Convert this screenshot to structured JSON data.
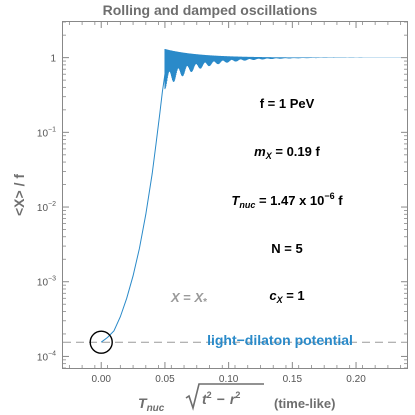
{
  "chart_data": {
    "type": "line",
    "title": "Rolling and damped oscillations",
    "xlabel": {
      "main": "T",
      "sub": "nuc",
      "root": "t",
      "sup": "2",
      "minus": "−",
      "root2": "r",
      "sup2": "2",
      "suffix": "(time-like)"
    },
    "ylabel": "<X> / f",
    "x_scale": "linear",
    "y_scale": "log",
    "xlim": [
      -0.03,
      0.24
    ],
    "ylim": [
      7e-05,
      3
    ],
    "x_ticks": [
      {
        "value": 0.0,
        "label": "0.00"
      },
      {
        "value": 0.05,
        "label": "0.05"
      },
      {
        "value": 0.1,
        "label": "0.10"
      },
      {
        "value": 0.15,
        "label": "0.15"
      },
      {
        "value": 0.2,
        "label": "0.20"
      }
    ],
    "y_ticks": [
      {
        "value": 1,
        "base": "1",
        "exp": ""
      },
      {
        "value": 0.1,
        "base": "10",
        "exp": "−1"
      },
      {
        "value": 0.01,
        "base": "10",
        "exp": "−2"
      },
      {
        "value": 0.001,
        "base": "10",
        "exp": "−3"
      },
      {
        "value": 0.0001,
        "base": "10",
        "exp": "−4"
      }
    ],
    "series": [
      {
        "color": "#2a8ac9",
        "rise": {
          "x": [
            0.0,
            0.005,
            0.01,
            0.015,
            0.02,
            0.025,
            0.03,
            0.035,
            0.04,
            0.043,
            0.046,
            0.048,
            0.05
          ],
          "y": [
            0.000155,
            0.00018,
            0.00022,
            0.00034,
            0.0006,
            0.0012,
            0.0028,
            0.008,
            0.028,
            0.07,
            0.18,
            0.35,
            0.6
          ]
        },
        "oscillation": {
          "x_start": 0.05,
          "x_end": 0.24,
          "mean": 1.0,
          "amplitude_start_high": 1.3,
          "amplitude_start_low": 0.38,
          "damping_rate": 38
        }
      }
    ],
    "reference_line": {
      "y": 0.000155,
      "label_main": "X",
      "label_eq": " = ",
      "label_rhs": "X",
      "label_rhs_sub": "*",
      "color": "#9a9a9a"
    },
    "marker": {
      "x": 0.0,
      "y": 0.000155,
      "shape": "open-circle"
    },
    "annotations": {
      "f": "f = 1 PeV",
      "m_main": "m",
      "m_sub": "X",
      "m_rest": " = 0.19 f",
      "t_main": "T",
      "t_sub": "nuc",
      "t_rest": " = 1.47 x 10",
      "t_sup": "−6",
      "t_tail": " f",
      "n": "N = 5",
      "c_main": "c",
      "c_sub": "X",
      "c_rest": " = 1",
      "potential": "light−dilaton potential",
      "potential_color": "#2a8ac9"
    },
    "grid": false
  }
}
